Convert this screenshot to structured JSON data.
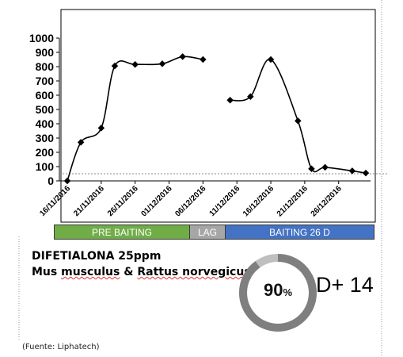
{
  "chart_data": {
    "type": "line",
    "ylim": [
      0,
      1000
    ],
    "yticks": [
      "0",
      "100",
      "200",
      "300",
      "400",
      "500",
      "600",
      "700",
      "800",
      "900",
      "1000"
    ],
    "xticks": [
      "16/11/2016",
      "21/11/2016",
      "26/11/2016",
      "01/12/2016",
      "06/12/2016",
      "11/12/2016",
      "16/12/2016",
      "21/12/2016",
      "26/12/2016"
    ],
    "series": [
      {
        "segments": [
          [
            [
              "16/11/2016",
              0
            ],
            [
              "18/11/2016",
              270
            ],
            [
              "21/11/2016",
              370
            ],
            [
              "23/11/2016",
              805
            ],
            [
              "26/11/2016",
              815
            ],
            [
              "30/11/2016",
              820
            ],
            [
              "03/12/2016",
              870
            ],
            [
              "06/12/2016",
              850
            ]
          ],
          [
            [
              "10/12/2016",
              565
            ],
            [
              "13/12/2016",
              590
            ],
            [
              "16/12/2016",
              850
            ],
            [
              "20/12/2016",
              420
            ],
            [
              "22/12/2016",
              85
            ],
            [
              "24/12/2016",
              95
            ],
            [
              "28/12/2016",
              70
            ],
            [
              "30/12/2016",
              55
            ]
          ]
        ]
      }
    ],
    "reference_line": 50,
    "line_color": "#000000"
  },
  "phases": [
    {
      "label": "PRE BAITING",
      "color": "#70ad47"
    },
    {
      "label": "LAG",
      "color": "#a6a6a6"
    },
    {
      "label": "BAITING 26 D",
      "color": "#4472c4"
    }
  ],
  "product": {
    "line1": "DIFETIALONA 25ppm",
    "line2_part1": "Mus",
    "line2_part2": "musculus",
    "line2_part3": "&",
    "line2_part4": "Rattus norvegicus"
  },
  "donut": {
    "value": 90,
    "label_number": "90",
    "label_symbol": "%",
    "fill_color": "#7f7f7f",
    "remainder_color": "#bfbfbf"
  },
  "dose_label": "D+ 14",
  "source": "(Fuente: Liphatech)"
}
